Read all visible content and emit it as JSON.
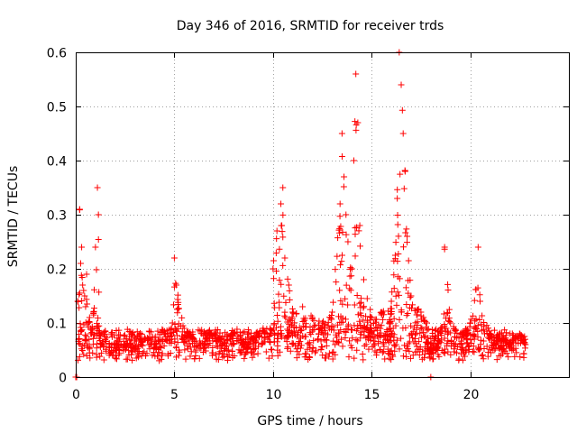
{
  "chart_data": {
    "type": "scatter",
    "title": "Day 346 of 2016, SRMTID for receiver trds",
    "xlabel": "GPS time / hours",
    "ylabel": "SRMTID / TECUs",
    "xlim": [
      0,
      25
    ],
    "ylim": [
      0,
      0.6
    ],
    "xticks": [
      0,
      5,
      10,
      15,
      20
    ],
    "yticks": [
      0,
      0.1,
      0.2,
      0.3,
      0.4,
      0.5,
      0.6
    ],
    "grid": true,
    "marker": "+",
    "marker_color": "#ff0000",
    "x_extent_hours": [
      0.0,
      22.8
    ],
    "notes": "Dense scatter of SRMTID values; baseline ~0.05-0.1 TECU with activity bursts near 0.5-1 h, 10-11 h, 13-15 h and 16-17 h.",
    "series": [
      {
        "name": "trds",
        "x": [
          0.0,
          0.05,
          0.1,
          0.2,
          0.25,
          0.3,
          0.35,
          0.4,
          0.45,
          0.5,
          0.55,
          0.6,
          0.7,
          0.8,
          0.9,
          1.0,
          1.1,
          1.15,
          1.2,
          1.3,
          1.5,
          2.0,
          2.5,
          3.0,
          3.5,
          4.0,
          4.5,
          4.9,
          5.0,
          5.1,
          5.5,
          6.0,
          6.5,
          7.0,
          7.5,
          8.0,
          8.5,
          9.0,
          9.5,
          9.9,
          10.0,
          10.2,
          10.4,
          10.5,
          10.6,
          10.8,
          11.0,
          11.5,
          12.0,
          12.5,
          13.0,
          13.4,
          13.5,
          13.6,
          13.7,
          13.8,
          14.0,
          14.1,
          14.2,
          14.3,
          14.4,
          14.6,
          15.0,
          15.5,
          16.0,
          16.3,
          16.4,
          16.5,
          16.6,
          16.7,
          16.8,
          17.0,
          17.5,
          17.8,
          18.0,
          18.5,
          18.7,
          19.0,
          19.5,
          20.0,
          20.4,
          20.5,
          21.0,
          21.5,
          22.0,
          22.5,
          22.8
        ],
        "y": [
          0.0,
          0.0,
          0.14,
          0.31,
          0.21,
          0.24,
          0.17,
          0.16,
          0.15,
          0.13,
          0.19,
          0.1,
          0.11,
          0.08,
          0.12,
          0.24,
          0.35,
          0.3,
          0.08,
          0.06,
          0.07,
          0.05,
          0.06,
          0.05,
          0.07,
          0.06,
          0.08,
          0.1,
          0.22,
          0.17,
          0.09,
          0.07,
          0.06,
          0.08,
          0.07,
          0.08,
          0.06,
          0.07,
          0.09,
          0.08,
          0.2,
          0.27,
          0.32,
          0.35,
          0.22,
          0.17,
          0.12,
          0.13,
          0.11,
          0.1,
          0.12,
          0.32,
          0.45,
          0.37,
          0.3,
          0.25,
          0.2,
          0.4,
          0.56,
          0.47,
          0.28,
          0.18,
          0.11,
          0.12,
          0.14,
          0.33,
          0.6,
          0.54,
          0.45,
          0.38,
          0.26,
          0.15,
          0.12,
          0.1,
          0.0,
          0.09,
          0.24,
          0.1,
          0.08,
          0.1,
          0.24,
          0.14,
          0.08,
          0.07,
          0.06,
          0.08,
          0.06
        ]
      }
    ]
  }
}
